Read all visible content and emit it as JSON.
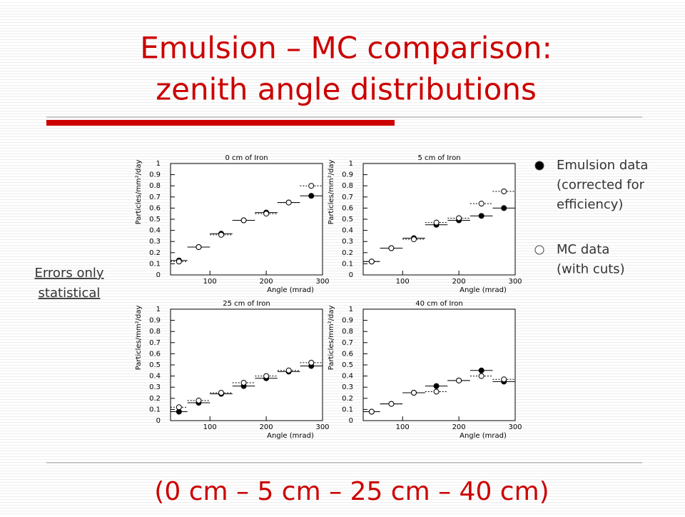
{
  "title": [
    "Emulsion – MC comparison:",
    "zenith angle distributions"
  ],
  "legend": [
    {
      "marker": "filled",
      "lines": [
        "Emulsion data",
        "(corrected for",
        "efficiency)"
      ]
    },
    {
      "marker": "open",
      "lines": [
        "MC data",
        "(with cuts)"
      ]
    }
  ],
  "note": [
    "Errors only",
    "statistical"
  ],
  "footer": "(0 cm – 5 cm – 25 cm – 40 cm)",
  "chart_data": [
    {
      "type": "scatter",
      "title": "0 cm of Iron",
      "x_label": "Angle (mrad)",
      "y_label": "Particles/mm²/day",
      "xlim": [
        30,
        300
      ],
      "ylim": [
        0,
        1
      ],
      "xticks": [
        100,
        200,
        300
      ],
      "yticks": [
        0,
        0.1,
        0.2,
        0.3,
        0.4,
        0.5,
        0.6,
        0.7,
        0.8,
        0.9,
        1
      ],
      "x": [
        45,
        80,
        120,
        160,
        200,
        240,
        280
      ],
      "xerr": [
        15,
        20,
        20,
        20,
        20,
        20,
        20
      ],
      "series": [
        {
          "marker": "filled",
          "color": "#000000",
          "values": [
            0.13,
            0.25,
            0.37,
            0.49,
            0.56,
            0.65,
            0.71
          ]
        },
        {
          "marker": "open",
          "color": "#000000",
          "values": [
            0.12,
            0.25,
            0.36,
            0.49,
            0.55,
            0.65,
            0.8
          ]
        }
      ]
    },
    {
      "type": "scatter",
      "title": "5 cm of Iron",
      "x_label": "Angle (mrad)",
      "y_label": "Particles/mm²/day",
      "xlim": [
        30,
        300
      ],
      "ylim": [
        0,
        1
      ],
      "xticks": [
        100,
        200,
        300
      ],
      "yticks": [
        0,
        0.1,
        0.2,
        0.3,
        0.4,
        0.5,
        0.6,
        0.7,
        0.8,
        0.9,
        1
      ],
      "x": [
        45,
        80,
        120,
        160,
        200,
        240,
        280
      ],
      "xerr": [
        15,
        20,
        20,
        20,
        20,
        20,
        20
      ],
      "series": [
        {
          "marker": "filled",
          "color": "#000000",
          "values": [
            0.12,
            0.24,
            0.33,
            0.45,
            0.49,
            0.53,
            0.6
          ]
        },
        {
          "marker": "open",
          "color": "#000000",
          "values": [
            0.12,
            0.24,
            0.32,
            0.47,
            0.51,
            0.64,
            0.75
          ]
        }
      ]
    },
    {
      "type": "scatter",
      "title": "25 cm of Iron",
      "x_label": "Angle (mrad)",
      "y_label": "Particles/mm²/day",
      "xlim": [
        30,
        300
      ],
      "ylim": [
        0,
        1
      ],
      "xticks": [
        100,
        200,
        300
      ],
      "yticks": [
        0,
        0.1,
        0.2,
        0.3,
        0.4,
        0.5,
        0.6,
        0.7,
        0.8,
        0.9,
        1
      ],
      "x": [
        45,
        80,
        120,
        160,
        200,
        240,
        280
      ],
      "xerr": [
        15,
        20,
        20,
        20,
        20,
        20,
        20
      ],
      "series": [
        {
          "marker": "filled",
          "color": "#000000",
          "values": [
            0.08,
            0.16,
            0.24,
            0.31,
            0.38,
            0.44,
            0.49
          ]
        },
        {
          "marker": "open",
          "color": "#000000",
          "values": [
            0.12,
            0.18,
            0.25,
            0.34,
            0.4,
            0.45,
            0.52
          ]
        }
      ]
    },
    {
      "type": "scatter",
      "title": "40 cm of Iron",
      "x_label": "Angle (mrad)",
      "y_label": "Particles/mm²/day",
      "xlim": [
        30,
        300
      ],
      "ylim": [
        0,
        1
      ],
      "xticks": [
        100,
        200,
        300
      ],
      "yticks": [
        0,
        0.1,
        0.2,
        0.3,
        0.4,
        0.5,
        0.6,
        0.7,
        0.8,
        0.9,
        1
      ],
      "x": [
        45,
        80,
        120,
        160,
        200,
        240,
        280
      ],
      "xerr": [
        15,
        20,
        20,
        20,
        20,
        20,
        20
      ],
      "series": [
        {
          "marker": "filled",
          "color": "#000000",
          "values": [
            0.08,
            0.15,
            0.25,
            0.31,
            0.36,
            0.45,
            0.35
          ]
        },
        {
          "marker": "open",
          "color": "#000000",
          "values": [
            0.08,
            0.15,
            0.25,
            0.26,
            0.36,
            0.4,
            0.37
          ]
        }
      ]
    }
  ]
}
